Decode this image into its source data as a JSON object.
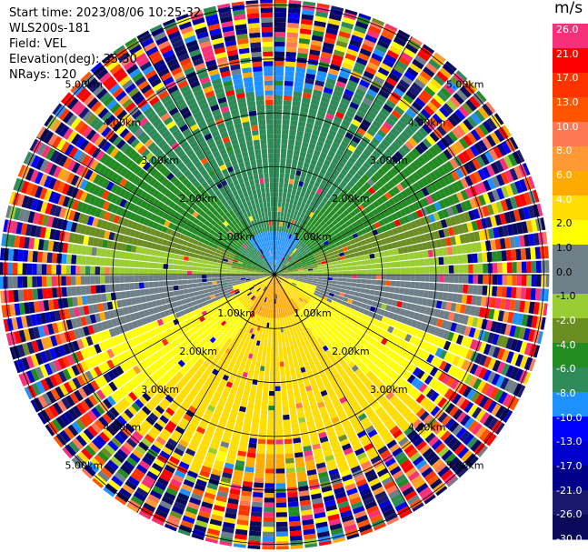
{
  "info": {
    "start_time": "Start time: 2023/08/06 10:25:32",
    "instrument": "WLS200s-181",
    "field": "Field: VEL",
    "elevation": "Elevation(deg): 35.30",
    "nrays": "NRays: 120"
  },
  "chart_data": {
    "type": "heatmap",
    "projection": "polar-ppi",
    "field": "VEL",
    "units": "m/s",
    "n_rays": 120,
    "elevation_deg": 35.3,
    "range_rings_km": [
      1,
      2,
      3,
      4,
      5
    ],
    "range_ring_labels": [
      "1.00km",
      "2.00km",
      "3.00km",
      "4.00km",
      "5.00km"
    ],
    "max_range_km": 5.1,
    "colorbar": {
      "label": "m/s",
      "ticks": [
        "26.0",
        "21.0",
        "17.0",
        "13.0",
        "10.0",
        "8.0",
        "6.0",
        "4.0",
        "2.0",
        "1.0",
        "0.0",
        "-1.0",
        "-2.0",
        "-4.0",
        "-6.0",
        "-8.0",
        "-10.0",
        "-13.0",
        "-17.0",
        "-21.0",
        "-26.0",
        "-30.0"
      ],
      "bin_colors": [
        "#f7307a",
        "#ff0000",
        "#ff3300",
        "#ff5500",
        "#ff7755",
        "#ff9933",
        "#ffaa00",
        "#ffdd00",
        "#ffff00",
        "#6f7f87",
        "#6f7f87",
        "#9acd32",
        "#6b8e23",
        "#228b22",
        "#2e8b57",
        "#1e90ff",
        "#0000ff",
        "#0000cd",
        "#00008b",
        "#191970",
        "#0a0a5a"
      ]
    }
  },
  "colors": {
    "near_zero": "#6f7f87",
    "toward_strong": "#0000cd",
    "away_strong": "#ff0000"
  }
}
